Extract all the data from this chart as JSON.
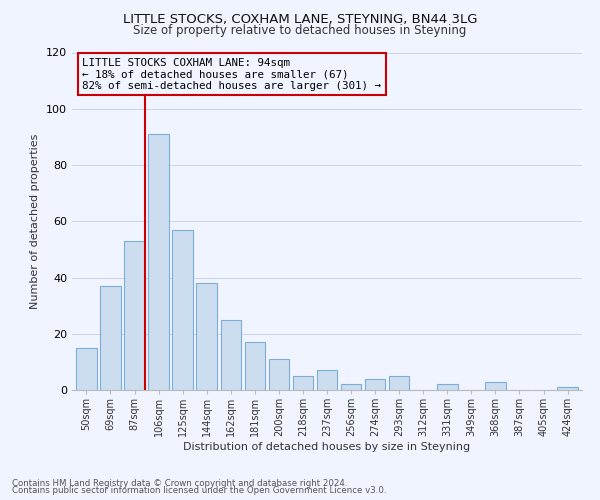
{
  "title": "LITTLE STOCKS, COXHAM LANE, STEYNING, BN44 3LG",
  "subtitle": "Size of property relative to detached houses in Steyning",
  "xlabel": "Distribution of detached houses by size in Steyning",
  "ylabel": "Number of detached properties",
  "footnote1": "Contains HM Land Registry data © Crown copyright and database right 2024.",
  "footnote2": "Contains public sector information licensed under the Open Government Licence v3.0.",
  "bar_labels": [
    "50sqm",
    "69sqm",
    "87sqm",
    "106sqm",
    "125sqm",
    "144sqm",
    "162sqm",
    "181sqm",
    "200sqm",
    "218sqm",
    "237sqm",
    "256sqm",
    "274sqm",
    "293sqm",
    "312sqm",
    "331sqm",
    "349sqm",
    "368sqm",
    "387sqm",
    "405sqm",
    "424sqm"
  ],
  "bar_values": [
    15,
    37,
    53,
    91,
    57,
    38,
    25,
    17,
    11,
    5,
    7,
    2,
    4,
    5,
    0,
    2,
    0,
    3,
    0,
    0,
    1
  ],
  "bar_color": "#ccddf0",
  "bar_edge_color": "#7aaed6",
  "vline_color": "#cc0000",
  "annotation_title": "LITTLE STOCKS COXHAM LANE: 94sqm",
  "annotation_line1": "← 18% of detached houses are smaller (67)",
  "annotation_line2": "82% of semi-detached houses are larger (301) →",
  "annotation_box_edge": "#cc0000",
  "ylim": [
    0,
    120
  ],
  "yticks": [
    0,
    20,
    40,
    60,
    80,
    100,
    120
  ],
  "background_color": "#f0f4ff",
  "grid_color": "#c8d4e8"
}
